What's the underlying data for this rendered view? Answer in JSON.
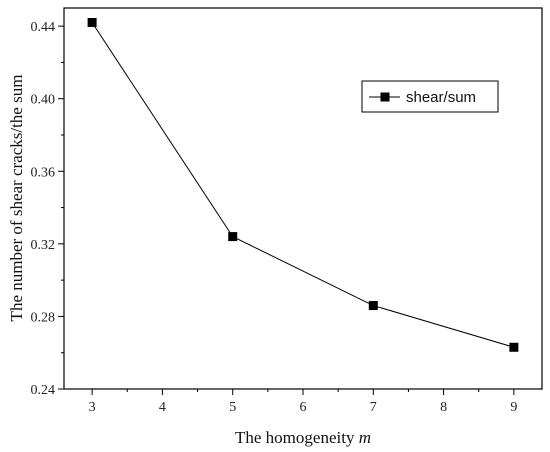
{
  "chart_data": {
    "type": "line",
    "title": "",
    "xlabel": "The homogeneity m",
    "xlabel_parts": [
      "The homogeneity ",
      "m"
    ],
    "ylabel": "The number of shear cracks/the sum",
    "xlim": [
      2.6,
      9.4
    ],
    "ylim": [
      0.24,
      0.45
    ],
    "x_ticks": [
      3,
      4,
      5,
      6,
      7,
      8,
      9
    ],
    "y_ticks": [
      0.24,
      0.28,
      0.32,
      0.36,
      0.4,
      0.44
    ],
    "y_tick_labels": [
      "0.24",
      "0.28",
      "0.32",
      "0.36",
      "0.40",
      "0.44"
    ],
    "grid": false,
    "legend_position": "top-right",
    "series": [
      {
        "name": "shear/sum",
        "marker": "square",
        "color": "#000000",
        "x": [
          3,
          5,
          7,
          9
        ],
        "y": [
          0.442,
          0.324,
          0.286,
          0.263
        ]
      }
    ]
  }
}
